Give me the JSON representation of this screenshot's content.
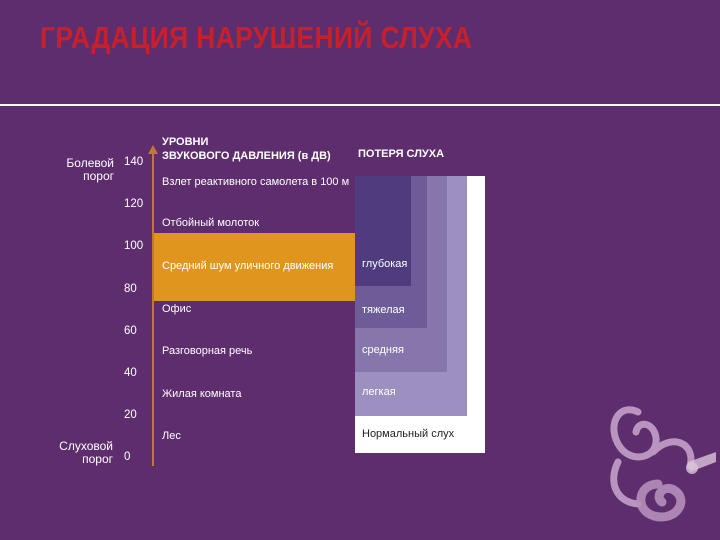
{
  "title": "ГРАДАЦИЯ НАРУШЕНИЙ СЛУХА",
  "headers": {
    "levels_line1": "УРОВНИ",
    "levels_line2": "ЗВУКОВОГО ДАВЛЕНИЯ (в ДВ)",
    "loss": "ПОТЕРЯ СЛУХА"
  },
  "side_labels": {
    "pain_line1": "Болевой",
    "pain_line2": "порог",
    "hearing_line1": "Слуховой",
    "hearing_line2": "порог"
  },
  "ticks": [
    "140",
    "120",
    "100",
    "80",
    "60",
    "40",
    "20",
    "0"
  ],
  "sources": [
    "Взлет реактивного самолета в 100 м",
    "Отбойный молоток",
    "Средний шум уличного движения",
    "Офис",
    "Разговорная речь",
    "Жилая комната",
    "Лес"
  ],
  "severity": [
    "глубокая",
    "тяжелая",
    "средняя",
    "легкая",
    "Нормальный слух"
  ],
  "colors": {
    "background": "#5e2d6e",
    "title": "#c8202b",
    "axis": "#c17a2d",
    "highlight_band": "#e0961e",
    "normal": "#ffffff",
    "mild": "#9d8fbf",
    "moderate": "#8676ac",
    "severe": "#6e5c98",
    "profound": "#4f3c7f"
  },
  "icons": {
    "decoration": "inner-ear-icon"
  }
}
